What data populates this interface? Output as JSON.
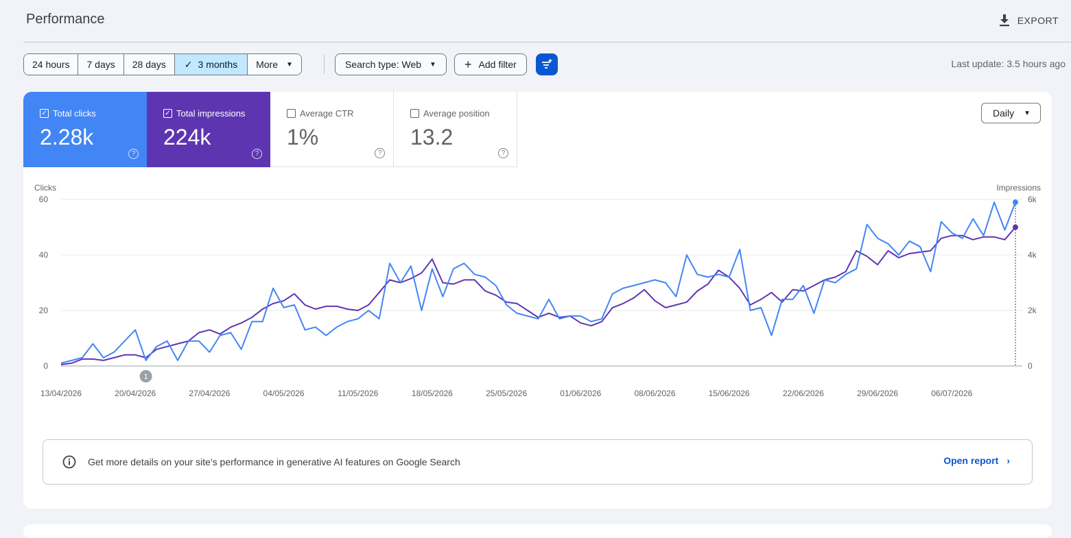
{
  "header": {
    "title": "Performance",
    "export_label": "EXPORT"
  },
  "filters": {
    "ranges": [
      {
        "label": "24 hours",
        "active": false
      },
      {
        "label": "7 days",
        "active": false
      },
      {
        "label": "28 days",
        "active": false
      },
      {
        "label": "3 months",
        "active": true
      },
      {
        "label": "More",
        "active": false
      }
    ],
    "search_type": "Search type: Web",
    "add_filter": "Add filter",
    "last_update": "Last update: 3.5 hours ago"
  },
  "metrics": [
    {
      "label": "Total clicks",
      "value": "2.28k",
      "checked": true
    },
    {
      "label": "Total impressions",
      "value": "224k",
      "checked": true
    },
    {
      "label": "Average CTR",
      "value": "1%",
      "checked": false
    },
    {
      "label": "Average position",
      "value": "13.2",
      "checked": false
    }
  ],
  "granularity": "Daily",
  "colors": {
    "clicks": "#4285f4",
    "impressions": "#5e35b1",
    "accent": "#0b57d0"
  },
  "chart_data": {
    "type": "line",
    "ylabel_left": "Clicks",
    "ylabel_right": "Impressions",
    "left_ticks": [
      "0",
      "20",
      "40",
      "60"
    ],
    "right_ticks": [
      "0",
      "2k",
      "4k",
      "6k"
    ],
    "left_ylim": [
      0,
      60
    ],
    "right_ylim": [
      0,
      6000
    ],
    "x_tick_labels": [
      "13/04/2026",
      "20/04/2026",
      "27/04/2026",
      "04/05/2026",
      "11/05/2026",
      "18/05/2026",
      "25/05/2026",
      "01/06/2026",
      "08/06/2026",
      "15/06/2026",
      "22/06/2026",
      "29/06/2026",
      "06/07/2026"
    ],
    "start_date": "13/04/2026",
    "annotation_marker": "1",
    "annotation_date": "21/04/2026",
    "highlight_date": "12/07/2026",
    "series": [
      {
        "name": "Clicks",
        "axis": "left",
        "values": [
          1,
          2,
          3,
          8,
          3,
          5,
          9,
          13,
          2,
          7,
          9,
          2,
          9,
          9,
          5,
          11,
          12,
          6,
          16,
          16,
          28,
          21,
          22,
          13,
          14,
          11,
          14,
          16,
          17,
          20,
          17,
          37,
          30,
          36,
          20,
          35,
          25,
          35,
          37,
          33,
          32,
          29,
          22,
          19,
          18,
          17,
          24,
          17,
          18,
          18,
          16,
          17,
          26,
          28,
          29,
          30,
          31,
          30,
          25,
          40,
          33,
          32,
          33,
          32,
          42,
          20,
          21,
          11,
          24,
          24,
          29,
          19,
          31,
          30,
          33,
          35,
          51,
          46,
          44,
          40,
          45,
          43,
          34,
          52,
          48,
          46,
          53,
          47,
          59,
          49,
          59
        ]
      },
      {
        "name": "Impressions",
        "axis": "right",
        "values": [
          50,
          100,
          250,
          250,
          200,
          300,
          400,
          400,
          300,
          600,
          700,
          800,
          900,
          1200,
          1300,
          1150,
          1400,
          1550,
          1750,
          2050,
          2250,
          2350,
          2600,
          2200,
          2050,
          2150,
          2150,
          2050,
          2000,
          2200,
          2650,
          3100,
          3000,
          3150,
          3350,
          3850,
          3000,
          2950,
          3100,
          3100,
          2700,
          2550,
          2300,
          2250,
          2000,
          1750,
          1900,
          1750,
          1800,
          1550,
          1450,
          1600,
          2100,
          2250,
          2450,
          2750,
          2350,
          2100,
          2200,
          2300,
          2700,
          2950,
          3450,
          3200,
          2800,
          2200,
          2400,
          2650,
          2300,
          2750,
          2700,
          2900,
          3100,
          3200,
          3400,
          4150,
          3950,
          3650,
          4150,
          3900,
          4050,
          4100,
          4150,
          4600,
          4700,
          4700,
          4550,
          4650,
          4650,
          4550,
          5000
        ]
      }
    ]
  },
  "banner": {
    "text": "Get more details on your site's performance in generative AI features on Google Search",
    "link": "Open report"
  }
}
